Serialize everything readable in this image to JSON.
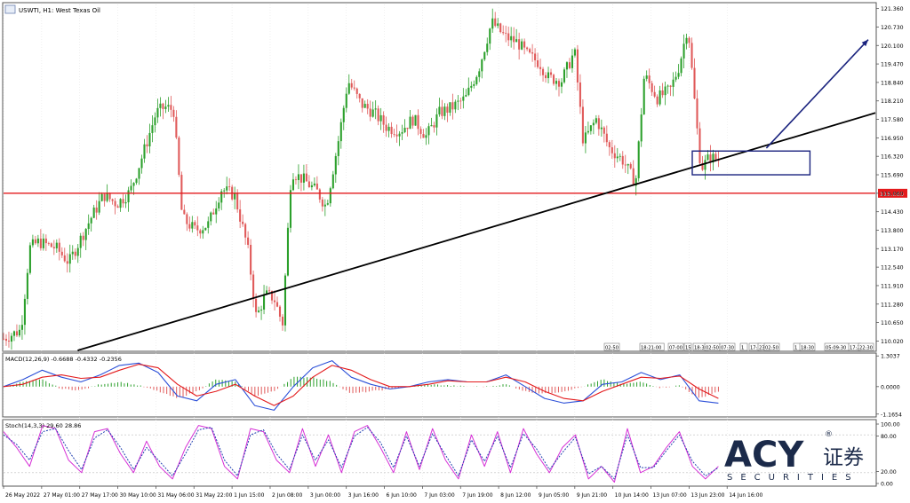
{
  "window": {
    "title": "USWTI, H1: West Texas Oil"
  },
  "colors": {
    "bull": "#2ca02c",
    "bear": "#e05a5a",
    "support": "#e31a1c",
    "trendline": "#000000",
    "arrow": "#1a237e",
    "box": "#1a237e",
    "macd_main": "#2b4fd8",
    "macd_signal": "#e31a1c",
    "stoch_main": "#d62fd6",
    "stoch_signal": "#1f3fb0",
    "logo_navy": "#1b2a4a",
    "logo_blue": "#2f5fd8"
  },
  "chart_data": [
    {
      "type": "candlestick",
      "title": "USWTI, H1: West Texas Oil",
      "y_axis_ticks": [
        "121.360",
        "120.730",
        "120.100",
        "119.470",
        "118.840",
        "118.210",
        "117.580",
        "116.950",
        "116.320",
        "115.690",
        "115.060",
        "114.430",
        "113.800",
        "113.170",
        "112.540",
        "111.910",
        "111.280",
        "110.650",
        "110.020"
      ],
      "ylim": [
        109.7,
        121.5
      ],
      "x_axis_ticks": [
        "26 May 2022",
        "27 May 01:00",
        "27 May 17:00",
        "30 May 10:00",
        "31 May 06:00",
        "31 May 22:00",
        "1 Jun 15:00",
        "2 Jun 08:00",
        "3 Jun 00:00",
        "3 Jun 16:00",
        "6 Jun 10:00",
        "7 Jun 03:00",
        "7 Jun 19:00",
        "8 Jun 12:00",
        "9 Jun 05:00",
        "9 Jun 21:00",
        "10 Jun 14:00",
        "13 Jun 07:00",
        "13 Jun 23:00",
        "14 Jun 16:00"
      ],
      "horizontal_line": {
        "value": 115.06,
        "label": "115.060"
      },
      "trendline": {
        "from": {
          "x_index": 0.085,
          "y": 109.7
        },
        "to": {
          "x_index": 1.0,
          "y": 117.8
        }
      },
      "consolidation_box": {
        "x_from": 0.79,
        "x_to": 0.925,
        "y_from": 115.69,
        "y_to": 116.5
      },
      "projection_arrow": {
        "x_from": 0.875,
        "y_from": 116.6,
        "x_to": 1.0,
        "y_to": 120.3
      },
      "close_path": [
        [
          0.0,
          110.1
        ],
        [
          0.02,
          110.4
        ],
        [
          0.03,
          113.2
        ],
        [
          0.04,
          113.4
        ],
        [
          0.06,
          113.2
        ],
        [
          0.075,
          112.7
        ],
        [
          0.085,
          113.3
        ],
        [
          0.1,
          114.2
        ],
        [
          0.115,
          115.0
        ],
        [
          0.13,
          114.7
        ],
        [
          0.145,
          115.1
        ],
        [
          0.16,
          116.4
        ],
        [
          0.175,
          117.8
        ],
        [
          0.185,
          118.0
        ],
        [
          0.195,
          117.9
        ],
        [
          0.205,
          114.2
        ],
        [
          0.22,
          113.8
        ],
        [
          0.235,
          114.0
        ],
        [
          0.25,
          115.2
        ],
        [
          0.265,
          115.0
        ],
        [
          0.28,
          113.2
        ],
        [
          0.29,
          110.8
        ],
        [
          0.3,
          111.6
        ],
        [
          0.31,
          111.5
        ],
        [
          0.32,
          110.6
        ],
        [
          0.33,
          115.8
        ],
        [
          0.345,
          115.5
        ],
        [
          0.36,
          115.1
        ],
        [
          0.37,
          114.6
        ],
        [
          0.385,
          117.0
        ],
        [
          0.395,
          118.9
        ],
        [
          0.41,
          118.1
        ],
        [
          0.425,
          117.8
        ],
        [
          0.44,
          117.3
        ],
        [
          0.455,
          117.2
        ],
        [
          0.47,
          117.6
        ],
        [
          0.485,
          117.0
        ],
        [
          0.5,
          117.8
        ],
        [
          0.515,
          118.0
        ],
        [
          0.53,
          118.3
        ],
        [
          0.545,
          119.3
        ],
        [
          0.56,
          120.9
        ],
        [
          0.575,
          120.4
        ],
        [
          0.59,
          120.2
        ],
        [
          0.6,
          119.8
        ],
        [
          0.615,
          119.5
        ],
        [
          0.625,
          119.0
        ],
        [
          0.64,
          118.9
        ],
        [
          0.655,
          119.9
        ],
        [
          0.665,
          116.8
        ],
        [
          0.68,
          117.6
        ],
        [
          0.695,
          116.6
        ],
        [
          0.71,
          116.2
        ],
        [
          0.725,
          115.4
        ],
        [
          0.735,
          119.1
        ],
        [
          0.75,
          118.3
        ],
        [
          0.765,
          118.6
        ],
        [
          0.775,
          119.4
        ],
        [
          0.785,
          120.8
        ],
        [
          0.795,
          117.4
        ],
        [
          0.8,
          115.9
        ],
        [
          0.81,
          116.3
        ],
        [
          0.82,
          116.2
        ]
      ]
    },
    {
      "type": "line",
      "title": "MACD(12,26,9) -0.6688 -0.4332 -0.2356",
      "y_axis_ticks": [
        "1.3037",
        "0.0000",
        "-1.1654"
      ],
      "ylim": [
        -1.25,
        1.35
      ],
      "series": [
        {
          "values": [
            0.0,
            0.3,
            0.7,
            0.4,
            0.2,
            0.5,
            0.9,
            1.0,
            0.6,
            -0.4,
            -0.6,
            0.1,
            0.3,
            -0.8,
            -1.0,
            0.0,
            0.8,
            1.1,
            0.4,
            0.1,
            -0.1,
            0.0,
            0.2,
            0.3,
            0.2,
            0.2,
            0.5,
            0.0,
            -0.5,
            -0.7,
            -0.6,
            0.1,
            0.2,
            0.6,
            0.3,
            0.5,
            -0.6,
            -0.7
          ]
        },
        {
          "values": [
            0.0,
            0.1,
            0.4,
            0.5,
            0.35,
            0.4,
            0.7,
            0.95,
            0.8,
            0.1,
            -0.4,
            -0.2,
            0.1,
            -0.4,
            -0.8,
            -0.4,
            0.4,
            0.9,
            0.7,
            0.3,
            0.0,
            0.0,
            0.1,
            0.25,
            0.2,
            0.2,
            0.4,
            0.2,
            -0.2,
            -0.5,
            -0.6,
            -0.2,
            0.1,
            0.4,
            0.35,
            0.45,
            -0.1,
            -0.5
          ]
        }
      ],
      "histogram": [
        0.0,
        0.2,
        0.3,
        -0.1,
        -0.15,
        0.1,
        0.2,
        0.05,
        -0.2,
        -0.5,
        -0.2,
        0.3,
        0.2,
        -0.4,
        -0.2,
        0.4,
        0.4,
        0.2,
        -0.3,
        -0.2,
        -0.1,
        0.0,
        0.1,
        0.05,
        0.0,
        0.0,
        0.1,
        -0.2,
        -0.3,
        -0.2,
        0.0,
        0.3,
        0.1,
        0.2,
        -0.05,
        0.05,
        -0.5,
        -0.2
      ]
    },
    {
      "type": "line",
      "title": "Stoch(14,3,3) 29.60 28.86",
      "y_axis_ticks": [
        "100.00",
        "80.00",
        "20.00",
        "0.00"
      ],
      "ylim": [
        0,
        100
      ],
      "series": [
        {
          "values": [
            85,
            60,
            30,
            95,
            90,
            40,
            20,
            85,
            90,
            50,
            20,
            70,
            30,
            10,
            60,
            95,
            90,
            30,
            10,
            90,
            85,
            40,
            20,
            90,
            30,
            80,
            20,
            85,
            95,
            60,
            20,
            85,
            25,
            90,
            40,
            10,
            80,
            30,
            85,
            20,
            90,
            50,
            20,
            60,
            80,
            10,
            30,
            5,
            90,
            20,
            30,
            60,
            85,
            30,
            10,
            30
          ]
        },
        {
          "values": [
            80,
            65,
            40,
            85,
            90,
            55,
            25,
            75,
            88,
            60,
            25,
            60,
            38,
            15,
            50,
            88,
            92,
            40,
            15,
            80,
            88,
            50,
            25,
            80,
            40,
            72,
            28,
            78,
            92,
            68,
            28,
            78,
            30,
            82,
            48,
            15,
            72,
            38,
            78,
            28,
            82,
            58,
            25,
            52,
            76,
            18,
            30,
            10,
            80,
            28,
            28,
            55,
            80,
            38,
            15,
            28
          ]
        }
      ]
    }
  ],
  "time_labels_strip": [
    "02:50",
    "18:21:00",
    "07:00",
    "15",
    "18:30",
    "02:50",
    "07:30",
    "1",
    "17:2",
    "23:0",
    "02:50",
    "1",
    "18:30",
    "05:09:30",
    "17:2",
    "22:30"
  ],
  "watermark": {
    "brand": "ACY",
    "chinese": "证券",
    "tagline": "SECURITIES",
    "registered": "®"
  }
}
